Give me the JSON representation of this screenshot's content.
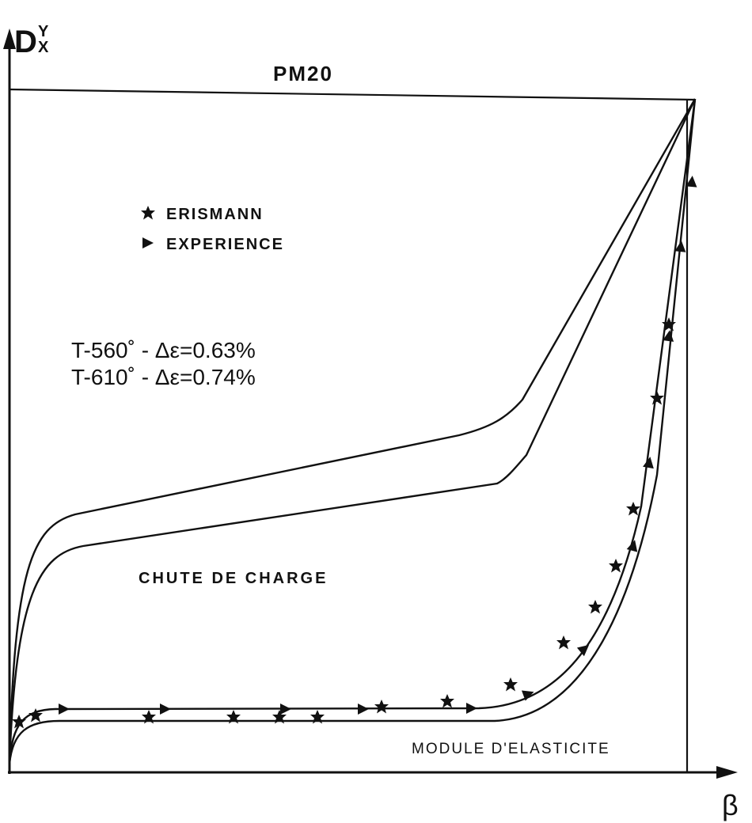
{
  "title": "PM20",
  "axis": {
    "y": {
      "main": "D",
      "sub": "X",
      "sup": "Y"
    },
    "x": "β"
  },
  "legend": [
    "ERISMANN",
    "EXPERIENCE"
  ],
  "annotations": [
    "T-560˚ - Δε=0.63%",
    "T-610˚ - Δε=0.74%",
    "CHUTE DE CHARGE",
    "MODULE D'ELASTICITE"
  ]
}
